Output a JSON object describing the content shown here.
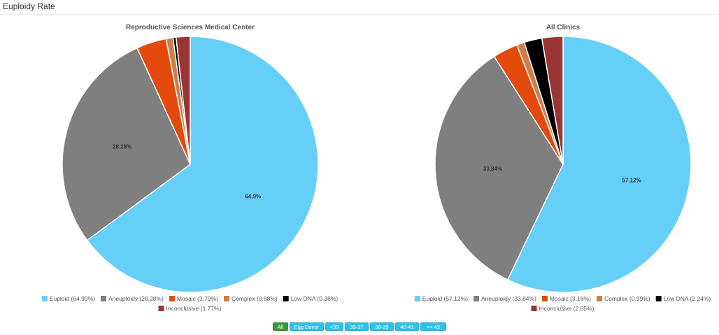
{
  "header": {
    "title": "Euploidy Rate"
  },
  "colors": {
    "Euploid": "#66cff8",
    "Aneuploidy": "#7f7f7f",
    "Mosaic": "#e34a0e",
    "Complex": "#cd7f48",
    "Low DNA": "#000000",
    "Inconclusive": "#9b3436"
  },
  "chart_data": [
    {
      "type": "pie",
      "title": "Reproductive Sciences Medical Center",
      "slices": [
        {
          "name": "Euploid",
          "value": 64.9
        },
        {
          "name": "Aneuploidy",
          "value": 28.28
        },
        {
          "name": "Mosaic",
          "value": 3.79
        },
        {
          "name": "Complex",
          "value": 0.88
        },
        {
          "name": "Low DNA",
          "value": 0.38
        },
        {
          "name": "Inconclusive",
          "value": 1.77
        }
      ],
      "data_labels": [
        {
          "name": "Euploid",
          "text": "64.9%"
        },
        {
          "name": "Aneuploidy",
          "text": "28.28%"
        }
      ],
      "legend": [
        {
          "name": "Euploid",
          "text": "Euploid (64.90%)"
        },
        {
          "name": "Aneuploidy",
          "text": "Aneuploidy (28.28%)"
        },
        {
          "name": "Mosaic",
          "text": "Mosaic (3.79%)"
        },
        {
          "name": "Complex",
          "text": "Complex (0.88%)"
        },
        {
          "name": "Low DNA",
          "text": "Low DNA (0.38%)"
        },
        {
          "name": "Inconclusive",
          "text": "Inconclusive (1.77%)"
        }
      ],
      "legend_position": "bottom"
    },
    {
      "type": "pie",
      "title": "All Clinics",
      "slices": [
        {
          "name": "Euploid",
          "value": 57.12
        },
        {
          "name": "Aneuploidy",
          "value": 33.84
        },
        {
          "name": "Mosaic",
          "value": 3.16
        },
        {
          "name": "Complex",
          "value": 0.99
        },
        {
          "name": "Low DNA",
          "value": 2.24
        },
        {
          "name": "Inconclusive",
          "value": 2.65
        }
      ],
      "data_labels": [
        {
          "name": "Euploid",
          "text": "57.12%"
        },
        {
          "name": "Aneuploidy",
          "text": "33.84%"
        }
      ],
      "legend": [
        {
          "name": "Euploid",
          "text": "Euploid (57.12%)"
        },
        {
          "name": "Aneuploidy",
          "text": "Aneuploidy (33.84%)"
        },
        {
          "name": "Mosaic",
          "text": "Mosaic (3.16%)"
        },
        {
          "name": "Complex",
          "text": "Complex (0.99%)"
        },
        {
          "name": "Low DNA",
          "text": "Low DNA (2.24%)"
        },
        {
          "name": "Inconclusive",
          "text": "Inconclusive (2.65%)"
        }
      ],
      "legend_position": "bottom"
    }
  ],
  "filters": [
    {
      "label": "All",
      "active": true
    },
    {
      "label": "Egg Donor",
      "active": false
    },
    {
      "label": "<35",
      "active": false
    },
    {
      "label": "35-37",
      "active": false
    },
    {
      "label": "38-39",
      "active": false
    },
    {
      "label": "40-41",
      "active": false
    },
    {
      "label": ">= 42",
      "active": false
    }
  ]
}
